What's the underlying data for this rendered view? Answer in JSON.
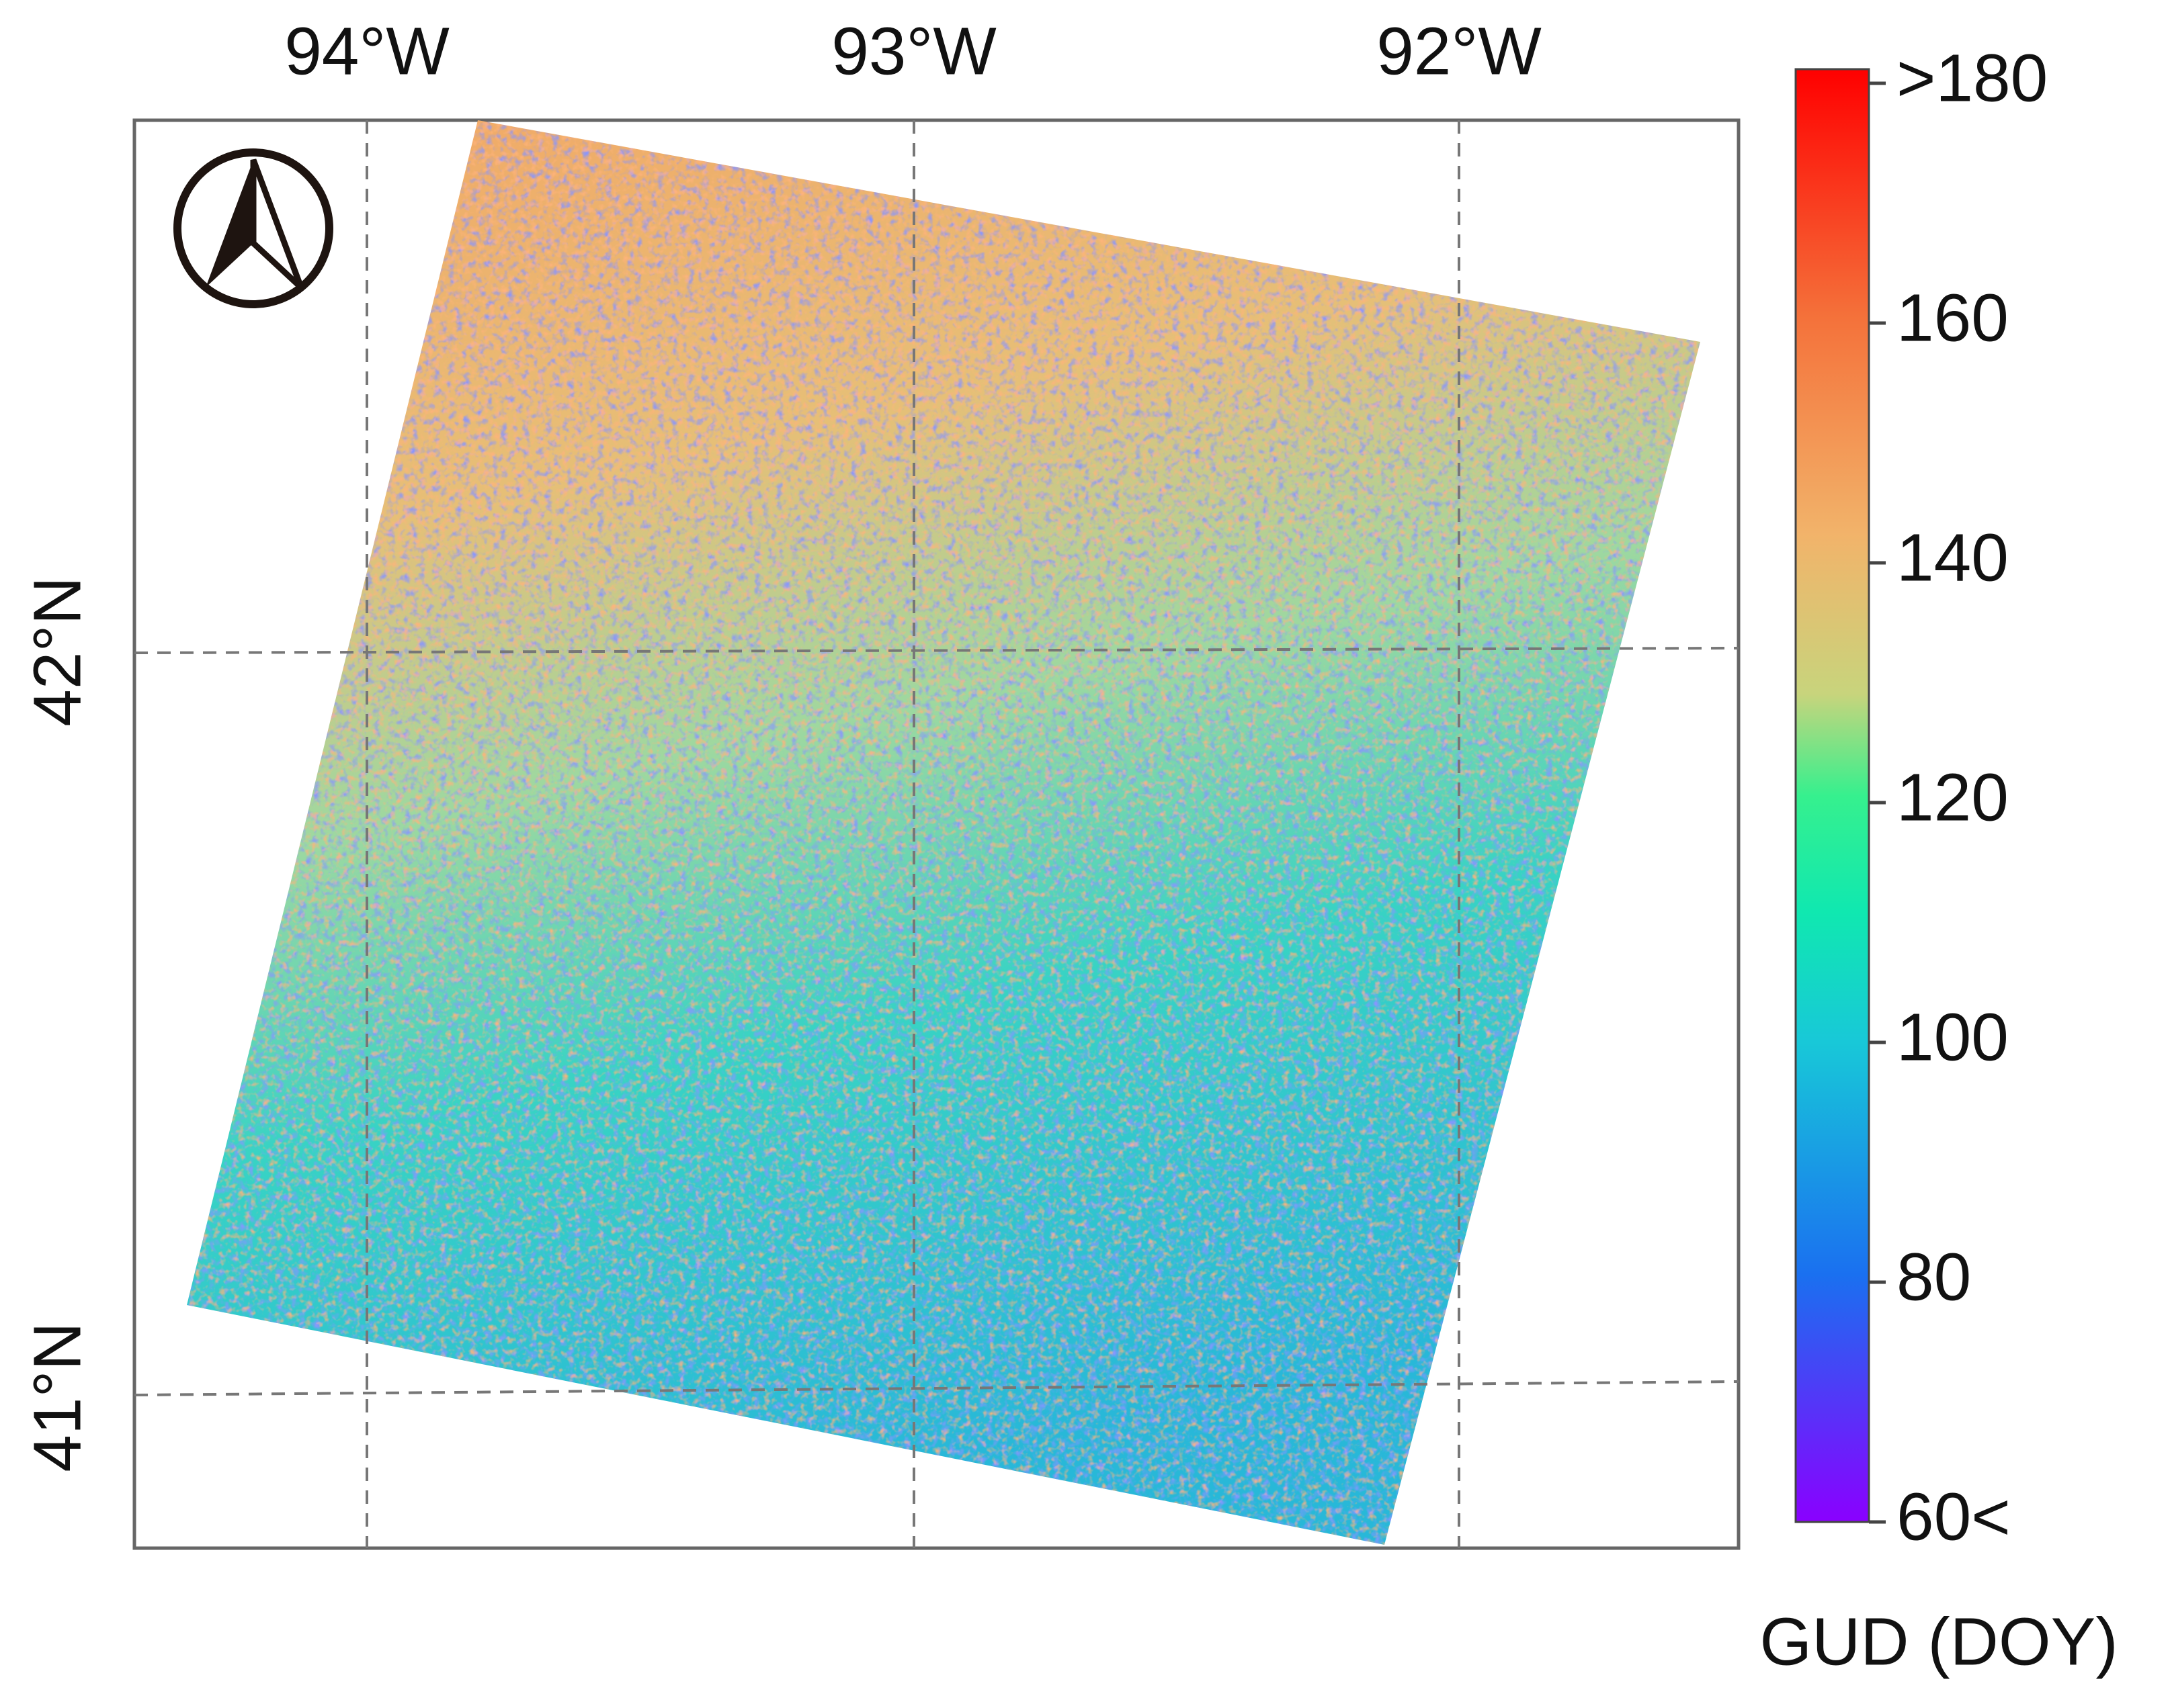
{
  "map": {
    "lon_labels": [
      "94°W",
      "93°W",
      "92°W"
    ],
    "lat_labels": [
      "42°N",
      "41°N"
    ],
    "colorbar": {
      "title": "GUD (DOY)",
      "labels": [
        ">180",
        "160",
        "140",
        "120",
        "100",
        "80",
        "60<"
      ]
    }
  }
}
